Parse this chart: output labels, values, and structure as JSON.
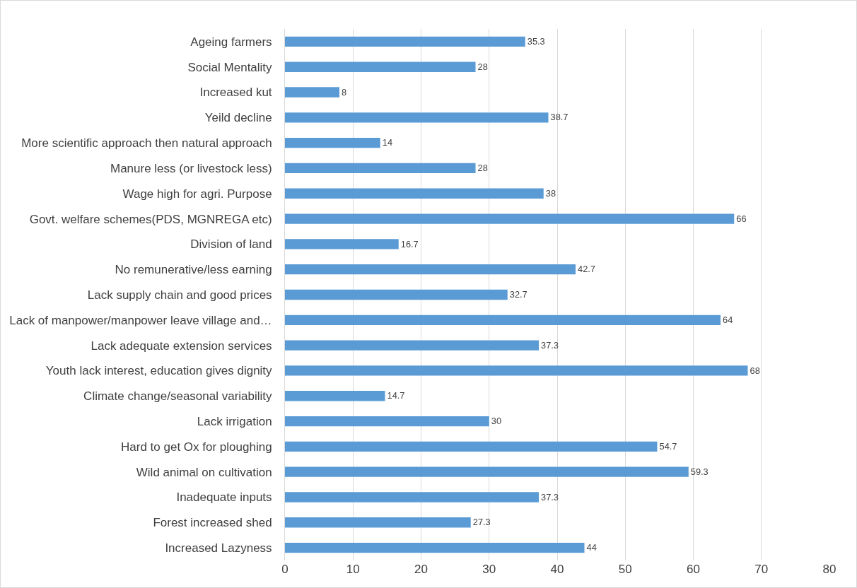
{
  "chart_data": {
    "type": "bar",
    "orientation": "horizontal",
    "categories": [
      "Ageing farmers",
      "Social Mentality",
      "Increased kut",
      "Yeild decline",
      "More scientific approach then natural approach",
      "Manure less (or livestock less)",
      "Wage high for agri. Purpose",
      "Govt. welfare schemes(PDS, MGNREGA etc)",
      "Division of land",
      "No remunerative/less earning",
      "Lack supply chain and good prices",
      "Lack of manpower/manpower leave village and…",
      "Lack adequate extension services",
      "Youth lack interest, education gives dignity",
      "Climate change/seasonal variability",
      "Lack irrigation",
      "Hard to get Ox for ploughing",
      "Wild animal on cultivation",
      "Inadequate inputs",
      "Forest increased shed",
      "Increased Lazyness"
    ],
    "values": [
      35.3,
      28,
      8,
      38.7,
      14,
      28,
      38,
      66,
      16.7,
      42.7,
      32.7,
      64,
      37.3,
      68,
      14.7,
      30,
      54.7,
      59.3,
      37.3,
      27.3,
      44
    ],
    "color": "#5b9bd5",
    "xlim": [
      0,
      80
    ],
    "xticks": [
      0,
      10,
      20,
      30,
      40,
      50,
      60,
      70,
      80
    ],
    "grid": "x",
    "data_labels": true
  }
}
